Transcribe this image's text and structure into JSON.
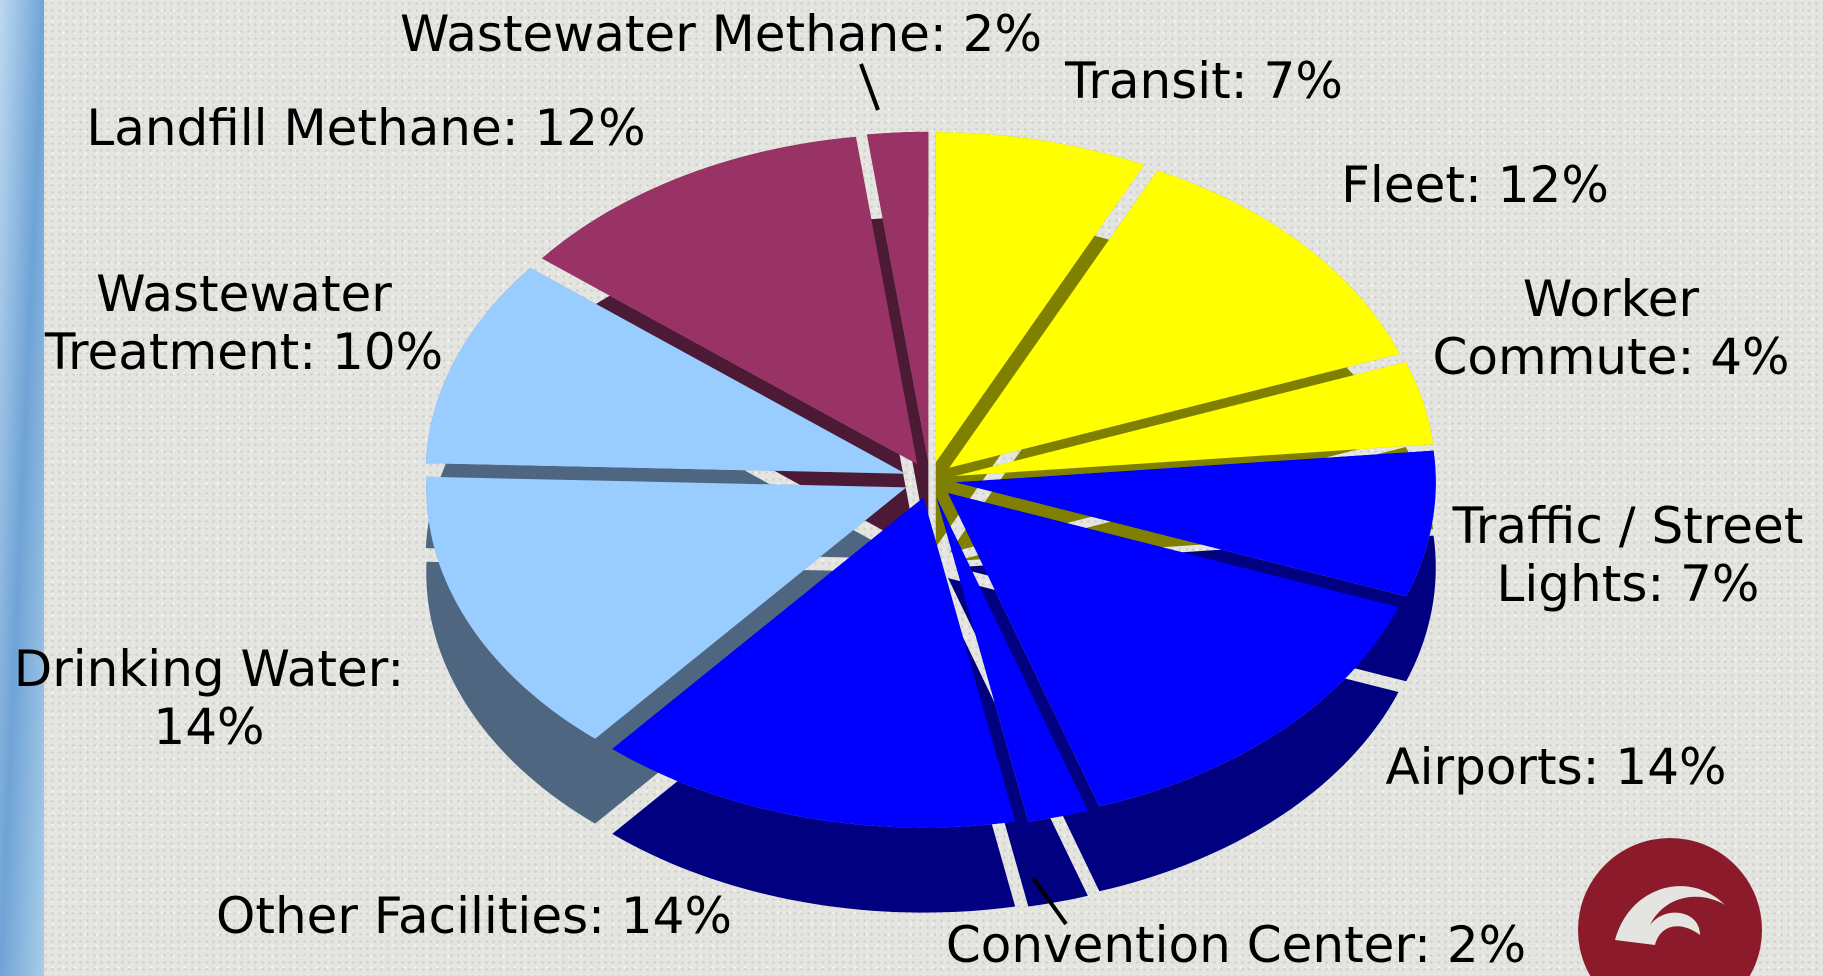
{
  "chart_data": {
    "type": "pie",
    "categories": [
      "Transit: 7%",
      "Fleet: 12%",
      "Worker\nCommute: 4%",
      "Traffic / Street\nLights: 7%",
      "Airports: 14%",
      "Convention Center:  2%",
      "Other Facilities:  14%",
      "Drinking Water:\n14%",
      "Wastewater\nTreatment: 10%",
      "Landfill Methane: 12%",
      "Wastewater Methane: 2%"
    ],
    "values": [
      7,
      12,
      4,
      7,
      14,
      2,
      14,
      14,
      10,
      12,
      2
    ],
    "colors": [
      "#ffff00",
      "#ffff00",
      "#ffff00",
      "#0000ff",
      "#0000ff",
      "#0000ff",
      "#0000ff",
      "#99ccff",
      "#99ccff",
      "#993366",
      "#993366"
    ],
    "side_colors": [
      "#808000",
      "#808000",
      "#808000",
      "#000080",
      "#000080",
      "#000080",
      "#000080",
      "#4f6680",
      "#4f6680",
      "#4d1a36",
      "#4d1a36"
    ]
  }
}
